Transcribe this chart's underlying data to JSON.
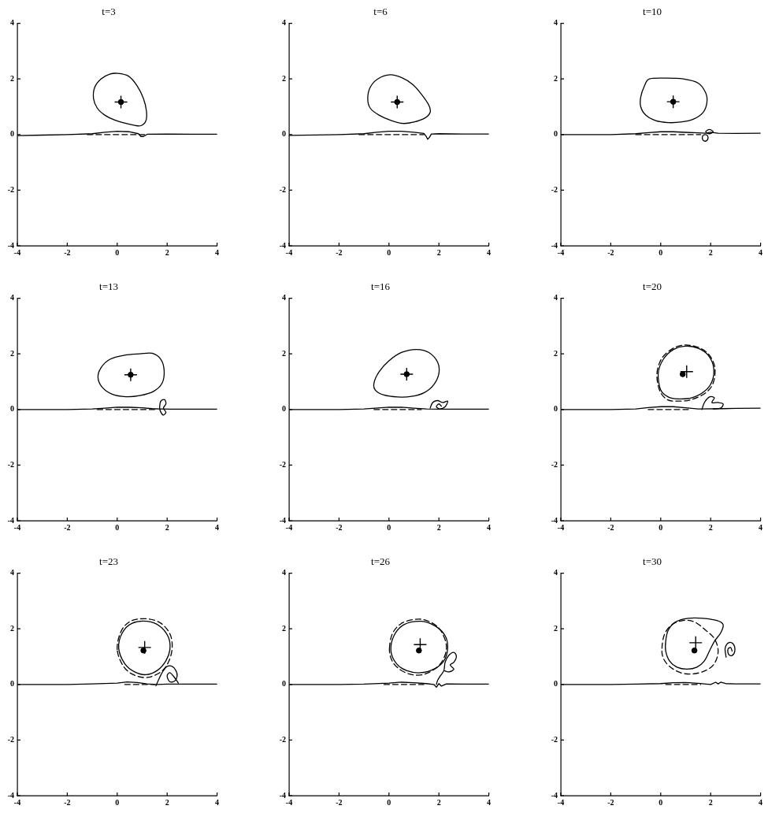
{
  "chart_data": [
    {
      "type": "line",
      "title": "t=3",
      "xlim": [
        -4,
        4
      ],
      "ylim": [
        -4,
        4
      ],
      "xticks": [
        -4,
        -2,
        0,
        2,
        4
      ],
      "yticks": [
        -4,
        -2,
        0,
        2,
        4
      ],
      "series": [
        {
          "color": "#000000",
          "x": [
            -4,
            -3,
            -2,
            -1,
            -0.5,
            0,
            0.5,
            0.85,
            0.95,
            1.05,
            1.2,
            2,
            3,
            4
          ],
          "values": [
            -0.04,
            -0.02,
            0,
            0.03,
            0.08,
            0.12,
            0.1,
            0.03,
            -0.07,
            -0.07,
            0.01,
            0.02,
            0.01,
            0.01
          ]
        },
        {
          "color": "#000000",
          "line_style": "dashed",
          "x": [
            -1.2,
            1.1
          ],
          "values": [
            0,
            0
          ]
        },
        {
          "type": "scatter",
          "color": "#000000",
          "marker": "circle",
          "x": [
            0.15
          ],
          "values": [
            1.17
          ]
        },
        {
          "type": "scatter",
          "color": "#000000",
          "marker": "cross",
          "x": [
            0.15
          ],
          "values": [
            1.17
          ]
        }
      ]
    },
    {
      "type": "line",
      "title": "t=6",
      "xlim": [
        -4,
        4
      ],
      "ylim": [
        -4,
        4
      ],
      "xticks": [
        -4,
        -2,
        0,
        2,
        4
      ],
      "yticks": [
        -4,
        -2,
        0,
        2,
        4
      ],
      "series": [
        {
          "color": "#000000",
          "x": [
            -4,
            -2,
            -1,
            -0.5,
            0,
            0.5,
            1,
            1.4,
            1.48,
            1.55,
            1.62,
            1.7,
            2,
            3,
            4
          ],
          "values": [
            -0.03,
            0,
            0.03,
            0.08,
            0.12,
            0.12,
            0.08,
            0.04,
            -0.05,
            -0.17,
            -0.1,
            0.02,
            0.03,
            0.02,
            0.02
          ]
        },
        {
          "color": "#000000",
          "line_style": "dashed",
          "x": [
            -1.2,
            1.4
          ],
          "values": [
            0,
            0
          ]
        },
        {
          "type": "scatter",
          "color": "#000000",
          "marker": "circle",
          "x": [
            0.33
          ],
          "values": [
            1.17
          ]
        },
        {
          "type": "scatter",
          "color": "#000000",
          "marker": "cross",
          "x": [
            0.33
          ],
          "values": [
            1.17
          ]
        }
      ]
    },
    {
      "type": "line",
      "title": "t=10",
      "xlim": [
        -4,
        4
      ],
      "ylim": [
        -4,
        4
      ],
      "xticks": [
        -4,
        -2,
        0,
        2,
        4
      ],
      "yticks": [
        -4,
        -2,
        0,
        2,
        4
      ],
      "series": [
        {
          "color": "#000000",
          "x": [
            -4,
            -2,
            -1,
            -0.5,
            0,
            0.5,
            1,
            1.5,
            1.8,
            2.0,
            2.3,
            3,
            4
          ],
          "values": [
            0,
            0,
            0.03,
            0.07,
            0.1,
            0.1,
            0.08,
            0.06,
            0.05,
            0.08,
            0.05,
            0.04,
            0.05
          ]
        },
        {
          "color": "#000000",
          "line_style": "dashed",
          "x": [
            -1,
            1.6
          ],
          "values": [
            0,
            0
          ]
        },
        {
          "type": "scatter",
          "color": "#000000",
          "marker": "circle",
          "x": [
            0.5
          ],
          "values": [
            1.18
          ]
        },
        {
          "type": "scatter",
          "color": "#000000",
          "marker": "cross",
          "x": [
            0.5
          ],
          "values": [
            1.18
          ]
        }
      ]
    },
    {
      "type": "line",
      "title": "t=13",
      "xlim": [
        -4,
        4
      ],
      "ylim": [
        -4,
        4
      ],
      "xticks": [
        -4,
        -2,
        0,
        2,
        4
      ],
      "yticks": [
        -4,
        -2,
        0,
        2,
        4
      ],
      "series": [
        {
          "color": "#000000",
          "x": [
            -4,
            -2,
            -1,
            -0.5,
            0,
            0.5,
            1,
            1.4,
            1.7,
            2.2,
            3,
            4
          ],
          "values": [
            0,
            0,
            0.02,
            0.05,
            0.08,
            0.08,
            0.06,
            0.03,
            0.02,
            0.01,
            0.01,
            0.01
          ]
        },
        {
          "color": "#000000",
          "line_style": "dashed",
          "x": [
            -0.8,
            1.5
          ],
          "values": [
            0,
            0
          ]
        },
        {
          "type": "scatter",
          "color": "#000000",
          "marker": "circle",
          "x": [
            0.54
          ],
          "values": [
            1.25
          ]
        },
        {
          "type": "scatter",
          "color": "#000000",
          "marker": "cross",
          "x": [
            0.54
          ],
          "values": [
            1.25
          ]
        }
      ]
    },
    {
      "type": "line",
      "title": "t=16",
      "xlim": [
        -4,
        4
      ],
      "ylim": [
        -4,
        4
      ],
      "xticks": [
        -4,
        -2,
        0,
        2,
        4
      ],
      "yticks": [
        -4,
        -2,
        0,
        2,
        4
      ],
      "series": [
        {
          "color": "#000000",
          "x": [
            -4,
            -2,
            -1,
            0,
            0.5,
            1,
            1.5,
            2,
            3,
            4
          ],
          "values": [
            0,
            0,
            0.02,
            0.08,
            0.08,
            0.05,
            0.02,
            0.01,
            0.01,
            0.01
          ]
        },
        {
          "color": "#000000",
          "line_style": "dashed",
          "x": [
            -0.6,
            1.3
          ],
          "values": [
            0,
            0
          ]
        },
        {
          "type": "scatter",
          "color": "#000000",
          "marker": "circle",
          "x": [
            0.71
          ],
          "values": [
            1.27
          ]
        },
        {
          "type": "scatter",
          "color": "#000000",
          "marker": "cross",
          "x": [
            0.71
          ],
          "values": [
            1.27
          ]
        }
      ]
    },
    {
      "type": "line",
      "title": "t=20",
      "xlim": [
        -4,
        4
      ],
      "ylim": [
        -4,
        4
      ],
      "xticks": [
        -4,
        -2,
        0,
        2,
        4
      ],
      "yticks": [
        -4,
        -2,
        0,
        2,
        4
      ],
      "series": [
        {
          "color": "#000000",
          "x": [
            -4,
            -2,
            -1,
            -0.5,
            0,
            0.5,
            1,
            1.5,
            2.5,
            3,
            4
          ],
          "values": [
            0,
            0,
            0.02,
            0.07,
            0.1,
            0.1,
            0.06,
            0.02,
            0.03,
            0.04,
            0.05
          ]
        },
        {
          "color": "#000000",
          "line_style": "dashed",
          "x": [
            -0.5,
            1.2
          ],
          "values": [
            0,
            0
          ]
        },
        {
          "type": "scatter",
          "color": "#000000",
          "marker": "circle",
          "x": [
            0.88
          ],
          "values": [
            1.27
          ]
        },
        {
          "type": "scatter",
          "color": "#000000",
          "marker": "cross",
          "x": [
            1.04
          ],
          "values": [
            1.36
          ]
        }
      ]
    },
    {
      "type": "line",
      "title": "t=23",
      "xlim": [
        -4,
        4
      ],
      "ylim": [
        -4,
        4
      ],
      "xticks": [
        -4,
        -2,
        0,
        2,
        4
      ],
      "yticks": [
        -4,
        -2,
        0,
        2,
        4
      ],
      "series": [
        {
          "color": "#000000",
          "x": [
            -4,
            -2,
            -1,
            0,
            0.4,
            0.8,
            1.2,
            1.6,
            2,
            3,
            4
          ],
          "values": [
            0,
            0,
            0.02,
            0.05,
            0.09,
            0.07,
            0.02,
            0,
            0.01,
            0.01,
            0.01
          ]
        },
        {
          "color": "#000000",
          "line_style": "dashed",
          "x": [
            0.3,
            1.5
          ],
          "values": [
            0,
            0
          ]
        },
        {
          "type": "scatter",
          "color": "#000000",
          "marker": "circle",
          "x": [
            1.05
          ],
          "values": [
            1.22
          ]
        },
        {
          "type": "scatter",
          "color": "#000000",
          "marker": "cross",
          "x": [
            1.1
          ],
          "values": [
            1.33
          ]
        }
      ]
    },
    {
      "type": "line",
      "title": "t=26",
      "xlim": [
        -4,
        4
      ],
      "ylim": [
        -4,
        4
      ],
      "xticks": [
        -4,
        -2,
        0,
        2,
        4
      ],
      "yticks": [
        -4,
        -2,
        0,
        2,
        4
      ],
      "series": [
        {
          "color": "#000000",
          "x": [
            -4,
            -2,
            -1,
            0,
            0.5,
            1,
            1.5,
            1.8,
            1.9,
            2.0,
            2.1,
            2.3,
            3,
            4
          ],
          "values": [
            0,
            0,
            0.01,
            0.05,
            0.08,
            0.06,
            0.03,
            0.0,
            -0.1,
            0.03,
            -0.06,
            0.02,
            0.01,
            0.01
          ]
        },
        {
          "color": "#000000",
          "line_style": "dashed",
          "x": [
            -0.2,
            1.4
          ],
          "values": [
            0,
            0
          ]
        },
        {
          "type": "scatter",
          "color": "#000000",
          "marker": "circle",
          "x": [
            1.2
          ],
          "values": [
            1.22
          ]
        },
        {
          "type": "scatter",
          "color": "#000000",
          "marker": "cross",
          "x": [
            1.25
          ],
          "values": [
            1.43
          ]
        }
      ]
    },
    {
      "type": "line",
      "title": "t=30",
      "xlim": [
        -4,
        4
      ],
      "ylim": [
        -4,
        4
      ],
      "xticks": [
        -4,
        -2,
        0,
        2,
        4
      ],
      "yticks": [
        -4,
        -2,
        0,
        2,
        4
      ],
      "series": [
        {
          "color": "#000000",
          "x": [
            -4,
            -2,
            -1,
            0,
            0.5,
            1,
            1.5,
            2.0,
            2.2,
            2.3,
            2.4,
            2.6,
            3,
            4
          ],
          "values": [
            0,
            0,
            0.01,
            0.03,
            0.06,
            0.07,
            0.04,
            0.0,
            0.08,
            0.02,
            0.08,
            0.03,
            0.02,
            0.02
          ]
        },
        {
          "color": "#000000",
          "line_style": "dashed",
          "x": [
            0.2,
            1.6
          ],
          "values": [
            0,
            0
          ]
        },
        {
          "type": "scatter",
          "color": "#000000",
          "marker": "circle",
          "x": [
            1.35
          ],
          "values": [
            1.22
          ]
        },
        {
          "type": "scatter",
          "color": "#000000",
          "marker": "cross",
          "x": [
            1.4
          ],
          "values": [
            1.5
          ]
        }
      ]
    }
  ]
}
